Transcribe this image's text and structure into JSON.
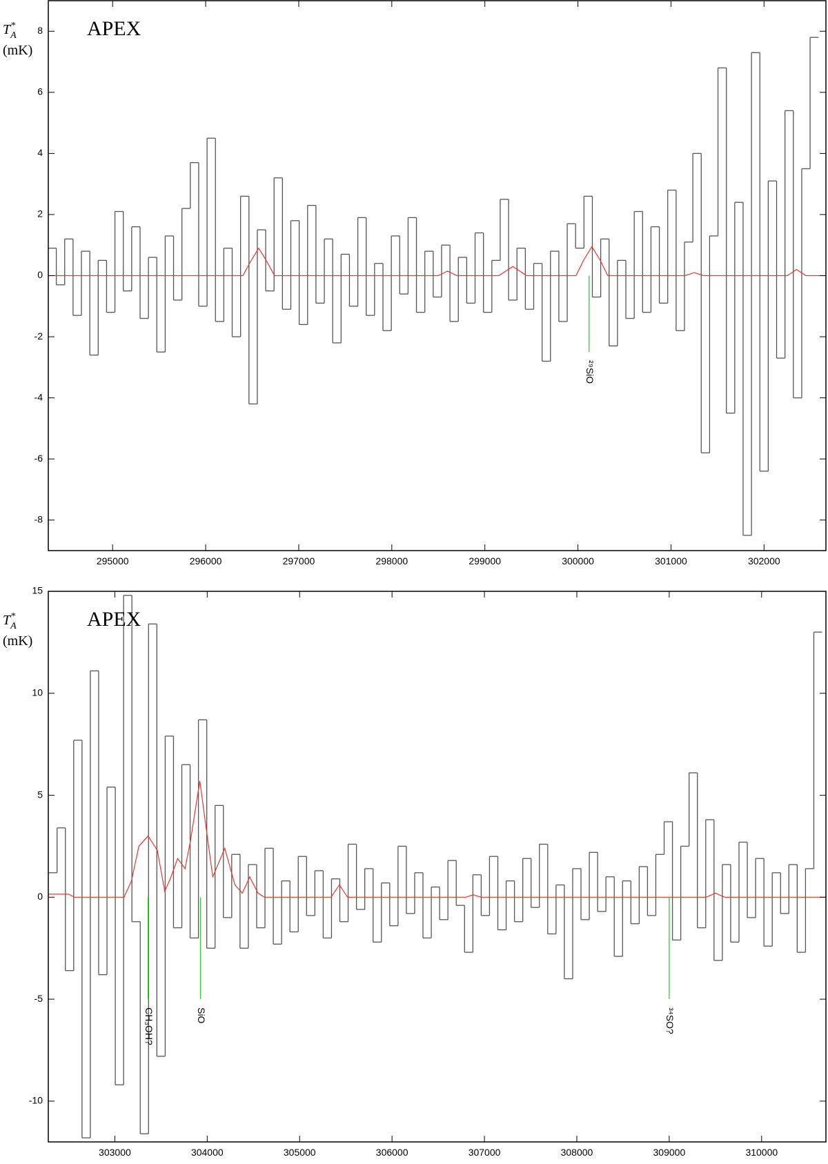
{
  "chart_data": [
    {
      "type": "step",
      "title": "APEX",
      "ylabel": {
        "main": "T",
        "sup": "*",
        "sub": "A",
        "unit": "(mK)"
      },
      "xlim": [
        294309,
        302665
      ],
      "ylim": [
        -9,
        9
      ],
      "xticks": [
        295000,
        296000,
        297000,
        298000,
        299000,
        300000,
        301000,
        302000
      ],
      "yticks": [
        -8,
        -6,
        -4,
        -2,
        0,
        2,
        4,
        6,
        8
      ],
      "series": [
        {
          "color": "#555555",
          "x": [
            294350,
            294440,
            294530,
            294620,
            294710,
            294800,
            294890,
            294980,
            295070,
            295160,
            295250,
            295340,
            295430,
            295520,
            295610,
            295700,
            295790,
            295880,
            295970,
            296060,
            296150,
            296240,
            296330,
            296420,
            296510,
            296600,
            296690,
            296780,
            296870,
            296960,
            297050,
            297140,
            297230,
            297320,
            297410,
            297500,
            297590,
            297680,
            297770,
            297860,
            297950,
            298040,
            298130,
            298220,
            298310,
            298400,
            298490,
            298580,
            298670,
            298760,
            298850,
            298940,
            299030,
            299120,
            299210,
            299300,
            299390,
            299480,
            299570,
            299660,
            299750,
            299840,
            299930,
            300020,
            300110,
            300200,
            300290,
            300380,
            300470,
            300560,
            300650,
            300740,
            300830,
            300920,
            301010,
            301100,
            301190,
            301280,
            301370,
            301460,
            301550,
            301640,
            301730,
            301820,
            301910,
            302000,
            302090,
            302180,
            302270,
            302360,
            302450,
            302540
          ],
          "values": [
            0.9,
            -0.3,
            1.2,
            -1.3,
            0.8,
            -2.6,
            0.5,
            -1.2,
            2.1,
            -0.5,
            1.6,
            -1.4,
            0.6,
            -2.5,
            1.3,
            -0.8,
            2.2,
            3.7,
            -1.0,
            4.5,
            -1.5,
            0.9,
            -2.0,
            2.6,
            -4.2,
            1.5,
            -0.5,
            3.2,
            -1.1,
            1.8,
            -1.6,
            2.3,
            -0.9,
            1.2,
            -2.2,
            0.7,
            -1.0,
            1.9,
            -1.3,
            0.4,
            -1.8,
            1.3,
            -0.6,
            1.9,
            -1.2,
            0.8,
            -0.7,
            1.0,
            -1.5,
            0.6,
            -0.9,
            1.4,
            -1.2,
            0.5,
            2.5,
            -0.8,
            0.9,
            -1.1,
            0.4,
            -2.8,
            0.8,
            -1.5,
            1.7,
            0.9,
            2.6,
            -0.7,
            1.2,
            -2.3,
            0.5,
            -1.4,
            2.1,
            -1.2,
            1.6,
            -0.9,
            2.8,
            -1.8,
            1.1,
            4.0,
            -5.8,
            1.3,
            6.8,
            -4.5,
            2.4,
            -8.5,
            7.3,
            -6.4,
            3.1,
            -2.7,
            5.4,
            -4.0,
            3.5,
            7.8
          ]
        },
        {
          "color": "#e8342a",
          "x": [
            294310,
            296400,
            296480,
            296570,
            296660,
            296740,
            298500,
            298600,
            298700,
            299150,
            299300,
            299450,
            299980,
            300060,
            300150,
            300240,
            300320,
            301150,
            301250,
            301350,
            302250,
            302350,
            302450,
            302660
          ],
          "values": [
            0,
            0,
            0.45,
            0.9,
            0.45,
            0,
            0,
            0.15,
            0,
            0,
            0.3,
            0,
            0,
            0.5,
            0.95,
            0.5,
            0,
            0,
            0.1,
            0,
            0,
            0.2,
            0,
            0
          ]
        }
      ],
      "markers": {
        "color": "#33cc33",
        "lines": [
          {
            "x": 300120,
            "from": 0,
            "to": -2.5,
            "label": "²⁹SiO"
          }
        ]
      }
    },
    {
      "type": "step",
      "title": "APEX",
      "ylabel": {
        "main": "T",
        "sup": "*",
        "sub": "A",
        "unit": "(mK)"
      },
      "xlim": [
        302280,
        310696
      ],
      "ylim": [
        -12,
        15
      ],
      "xticks": [
        303000,
        304000,
        305000,
        306000,
        307000,
        308000,
        309000,
        310000
      ],
      "yticks": [
        -10,
        -5,
        0,
        5,
        10,
        15
      ],
      "series": [
        {
          "color": "#555555",
          "x": [
            302330,
            302420,
            302510,
            302600,
            302690,
            302780,
            302870,
            302960,
            303050,
            303140,
            303230,
            303320,
            303410,
            303500,
            303590,
            303680,
            303770,
            303860,
            303950,
            304040,
            304130,
            304220,
            304310,
            304400,
            304490,
            304580,
            304670,
            304760,
            304850,
            304940,
            305030,
            305120,
            305210,
            305300,
            305390,
            305480,
            305570,
            305660,
            305750,
            305840,
            305930,
            306020,
            306110,
            306200,
            306290,
            306380,
            306470,
            306560,
            306650,
            306740,
            306830,
            306920,
            307010,
            307100,
            307190,
            307280,
            307370,
            307460,
            307550,
            307640,
            307730,
            307820,
            307910,
            308000,
            308090,
            308180,
            308270,
            308360,
            308450,
            308540,
            308630,
            308720,
            308810,
            308900,
            308990,
            309080,
            309170,
            309260,
            309350,
            309440,
            309530,
            309620,
            309710,
            309800,
            309890,
            309980,
            310070,
            310160,
            310250,
            310340,
            310430,
            310520,
            310610
          ],
          "values": [
            1.2,
            3.4,
            -3.6,
            7.7,
            -11.8,
            11.1,
            -3.8,
            5.4,
            -9.2,
            14.8,
            -1.2,
            -11.6,
            13.4,
            -7.8,
            7.9,
            -1.5,
            6.5,
            -2.0,
            8.7,
            -2.5,
            4.5,
            -1.0,
            2.1,
            -2.5,
            1.6,
            -1.5,
            2.4,
            -2.3,
            0.8,
            -1.7,
            2.0,
            -0.9,
            1.3,
            -2.0,
            0.9,
            -1.2,
            2.6,
            -0.6,
            1.4,
            -2.2,
            0.7,
            -1.4,
            2.5,
            -0.8,
            1.2,
            -2.0,
            0.5,
            -1.1,
            1.8,
            -0.4,
            -2.7,
            1.1,
            -0.9,
            2.0,
            -1.6,
            0.8,
            -1.2,
            1.9,
            -0.5,
            2.6,
            -1.8,
            0.6,
            -4.0,
            1.4,
            -1.1,
            2.2,
            -0.7,
            1.0,
            -2.9,
            0.8,
            -1.3,
            1.5,
            -0.9,
            2.1,
            3.7,
            -2.1,
            2.5,
            6.1,
            -1.5,
            3.8,
            -3.1,
            1.6,
            -2.2,
            2.7,
            -1.0,
            1.9,
            -2.4,
            1.2,
            -0.8,
            1.6,
            -2.7,
            1.4,
            13.0
          ]
        },
        {
          "color": "#e8342a",
          "x": [
            302280,
            302500,
            302560,
            303100,
            303180,
            303260,
            303360,
            303460,
            303540,
            303600,
            303680,
            303760,
            303820,
            303920,
            304000,
            304060,
            304190,
            304300,
            304380,
            304460,
            304550,
            304620,
            305340,
            305430,
            305520,
            306800,
            306880,
            306960,
            309400,
            309500,
            309600,
            310696
          ],
          "values": [
            0.15,
            0.15,
            0,
            0,
            0.8,
            2.5,
            3.0,
            2.3,
            0.3,
            0.9,
            1.9,
            1.4,
            2.8,
            5.7,
            3.0,
            1.0,
            2.4,
            0.6,
            0.2,
            1.0,
            0.2,
            0,
            0,
            0.6,
            0,
            0,
            0.12,
            0,
            0,
            0.2,
            0,
            0
          ]
        }
      ],
      "markers": {
        "color": "#33cc33",
        "lines": [
          {
            "x": 303360,
            "from": 0,
            "to": -5,
            "label": "CH₃OH?"
          },
          {
            "x": 303927,
            "from": 0,
            "to": -5,
            "label": "SiO"
          },
          {
            "x": 309000,
            "from": 0,
            "to": -5,
            "label": "³⁴SO?"
          }
        ]
      }
    }
  ]
}
